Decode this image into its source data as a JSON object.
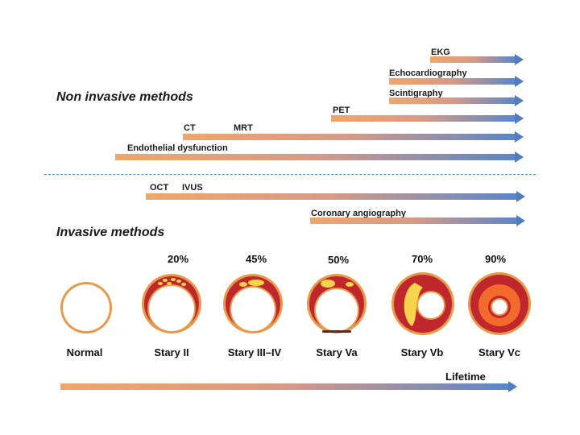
{
  "sections": {
    "non_invasive_title": "Non invasive methods",
    "invasive_title": "Invasive methods"
  },
  "methods": {
    "ekg": "EKG",
    "echocardiography": "Echocardiography",
    "scintigraphy": "Scintigraphy",
    "pet": "PET",
    "ct": "CT",
    "mrt": "MRT",
    "endothelial": "Endothelial dysfunction",
    "oct": "OCT",
    "ivus": "IVUS",
    "coronary": "Coronary angiography"
  },
  "stenosis": {
    "percentages": [
      "20%",
      "45%",
      "50%",
      "70%",
      "90%"
    ],
    "stages": [
      "Normal",
      "Stary II",
      "Stary III–IV",
      "Stary Va",
      "Stary Vb",
      "Stary Vc"
    ]
  },
  "timeline": {
    "label": "Lifetime"
  },
  "colors": {
    "arrow_start": "#f0a66a",
    "arrow_end": "#4f7dc2",
    "vessel_wall": "#c0272d",
    "vessel_rim": "#e79a4c",
    "lipid": "#f8d44c",
    "necrosis": "#f26b2c",
    "divider": "#3a8fc8"
  }
}
